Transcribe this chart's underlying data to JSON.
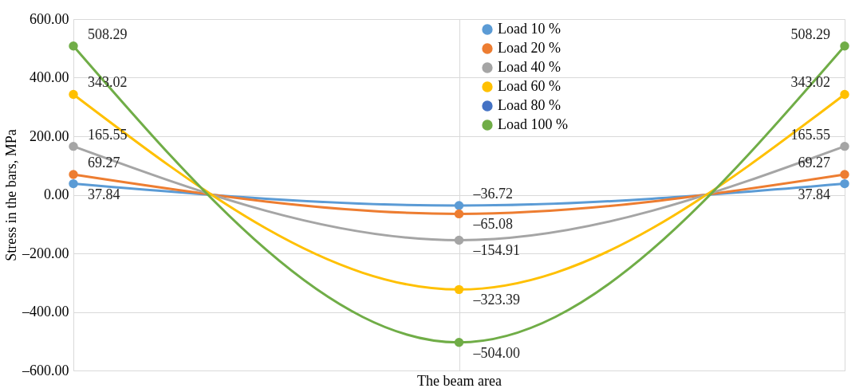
{
  "chart_data": {
    "type": "line",
    "xlabel": "The beam area",
    "ylabel": "Stress in the bars, MPa",
    "categories": [
      null,
      null,
      null
    ],
    "series": [
      {
        "name": "Load 10 %",
        "color": "#5b9bd5",
        "values": [
          37.84,
          -36.72,
          37.84
        ],
        "value_labels": [
          "37.84",
          "–36.72",
          "37.84"
        ]
      },
      {
        "name": "Load 20 %",
        "color": "#ed7d31",
        "values": [
          69.27,
          -65.08,
          69.27
        ],
        "value_labels": [
          "69.27",
          "–65.08",
          "69.27"
        ]
      },
      {
        "name": "Load 40 %",
        "color": "#a5a5a5",
        "values": [
          165.55,
          -154.91,
          165.55
        ],
        "value_labels": [
          "165.55",
          "–154.91",
          "165.55"
        ]
      },
      {
        "name": "Load 60 %",
        "color": "#ffc000",
        "values": [
          343.02,
          -323.39,
          343.02
        ],
        "value_labels": [
          "343.02",
          "–323.39",
          "343.02"
        ]
      },
      {
        "name": "Load 80 %",
        "color": "#4472c4",
        "values": [
          null,
          null,
          null
        ],
        "value_labels": [
          null,
          null,
          null
        ]
      },
      {
        "name": "Load 100 %",
        "color": "#70ad47",
        "values": [
          508.29,
          -504.0,
          508.29
        ],
        "value_labels": [
          "508.29",
          "–504.00",
          "508.29"
        ]
      }
    ],
    "ylim": [
      -600,
      600
    ],
    "yticks": [
      {
        "value": -600,
        "label": "–600.00"
      },
      {
        "value": -400,
        "label": "–400.00"
      },
      {
        "value": -200,
        "label": "–200.00"
      },
      {
        "value": 0,
        "label": "0.00"
      },
      {
        "value": 200,
        "label": "200.00"
      },
      {
        "value": 400,
        "label": "400.00"
      },
      {
        "value": 600,
        "label": "600.00"
      }
    ],
    "grid": true,
    "legend": "top right",
    "marker": "circle",
    "line_style": "solid",
    "tick_labels": "y"
  }
}
